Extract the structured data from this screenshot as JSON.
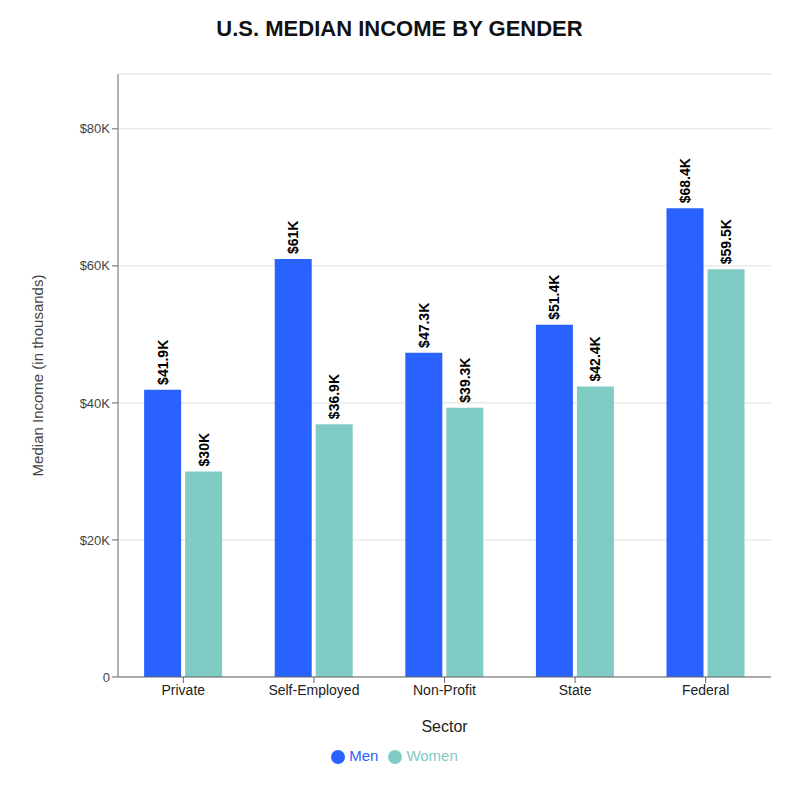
{
  "chart_data": {
    "type": "bar",
    "title": "U.S. MEDIAN INCOME BY GENDER",
    "categories": [
      "Private",
      "Self-Employed",
      "Non-Profit",
      "State",
      "Federal"
    ],
    "series": [
      {
        "name": "Men",
        "color": "#2962FF",
        "values": [
          41900,
          61000,
          47300,
          51400,
          68400
        ],
        "value_labels": [
          "$41.9K",
          "$61K",
          "$47.3K",
          "$51.4K",
          "$68.4K"
        ]
      },
      {
        "name": "Women",
        "color": "#80CBC4",
        "values": [
          30000,
          36900,
          39300,
          42400,
          59500
        ],
        "value_labels": [
          "$30K",
          "$36.9K",
          "$39.3K",
          "$42.4K",
          "$59.5K"
        ]
      }
    ],
    "xlabel": "Sector",
    "ylabel": "Median Income (in thousands)",
    "ylim": [
      0,
      88000
    ],
    "yticks": [
      0,
      {
        "value": 20000,
        "label": "$20K"
      },
      {
        "value": 40000,
        "label": "$40K"
      },
      {
        "value": 60000,
        "label": "$60K"
      },
      {
        "value": 80000,
        "label": "$80K"
      }
    ],
    "grid": true,
    "legend": "bottom",
    "data_labels": true
  }
}
